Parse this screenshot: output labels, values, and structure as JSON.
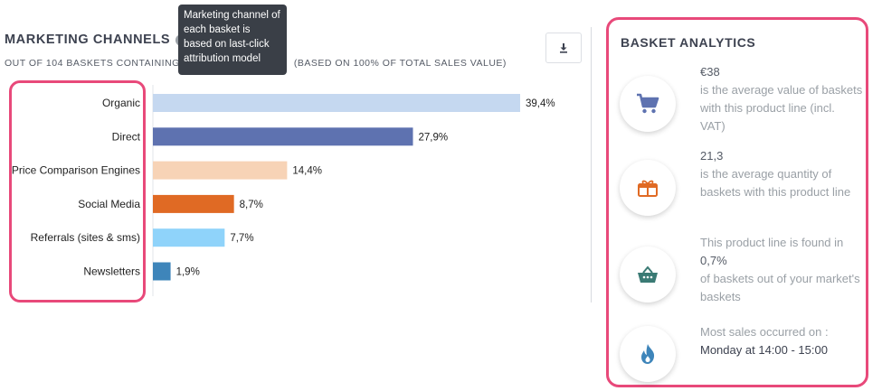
{
  "left_panel": {
    "title": "MARKETING CHANNELS",
    "info_icon": "info-icon",
    "subtitle": "OUT OF 104 BASKETS CONTAINING",
    "subtitle_tail": "(BASED ON 100% OF TOTAL SALES VALUE)",
    "tooltip": "Marketing channel of each basket is based on last-click attribution model",
    "download_icon": "download-icon"
  },
  "chart_data": {
    "type": "bar",
    "orientation": "horizontal",
    "categories": [
      "Organic",
      "Direct",
      "Price Comparison Engines",
      "Social Media",
      "Referrals (sites & sms)",
      "Newsletters"
    ],
    "values": [
      39.4,
      27.9,
      14.4,
      8.7,
      7.7,
      1.9
    ],
    "value_labels": [
      "39,4%",
      "27,9%",
      "14,4%",
      "8,7%",
      "7,7%",
      "1,9%"
    ],
    "colors": [
      "#c5d8f0",
      "#5e72b0",
      "#f7d3b6",
      "#e06a24",
      "#8fd3fa",
      "#3e85ba"
    ],
    "xlim": [
      0,
      39.4
    ]
  },
  "basket_analytics": {
    "title": "BASKET ANALYTICS",
    "stats": [
      {
        "icon": "shopping-cart-icon",
        "value": "€38",
        "text": "is the average value of baskets with this product line (incl. VAT)"
      },
      {
        "icon": "gift-box-icon",
        "value": "21,3",
        "text": "is the average quantity of baskets with this product line"
      },
      {
        "icon": "basket-icon",
        "pre": "This product line is found in",
        "value": "0,7%",
        "text": "of baskets out of your market's baskets"
      },
      {
        "icon": "flame-icon",
        "pre": "Most sales occurred on :",
        "day": "Monday",
        "at": "at",
        "time": "14:00 - 15:00"
      }
    ],
    "icon_colors": {
      "cart": "#5e72b0",
      "gift": "#e06a24",
      "basket": "#3a7a74",
      "flame": "#3e85ba"
    }
  }
}
